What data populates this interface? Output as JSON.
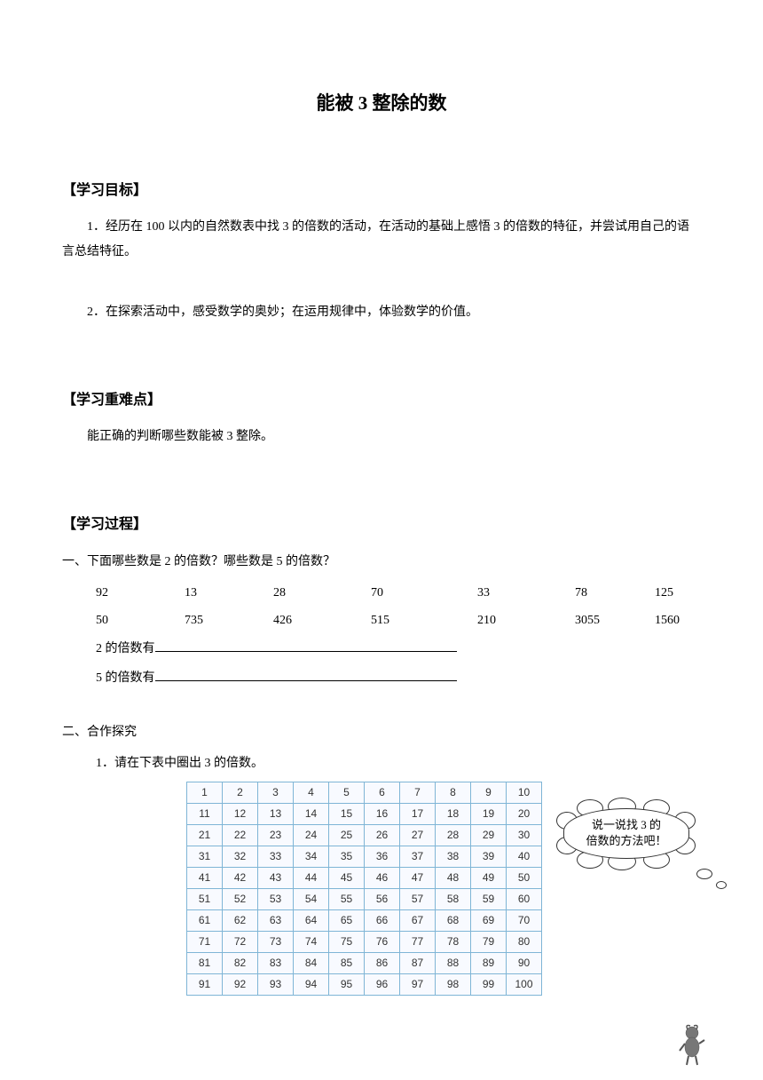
{
  "title": "能被 3 整除的数",
  "sections": {
    "objectives": {
      "heading": "【学习目标】",
      "items": [
        "1．经历在 100 以内的自然数表中找 3 的倍数的活动，在活动的基础上感悟 3 的倍数的特征，并尝试用自己的语言总结特征。",
        "2．在探索活动中，感受数学的奥妙；在运用规律中，体验数学的价值。"
      ]
    },
    "keypoints": {
      "heading": "【学习重难点】",
      "text": "能正确的判断哪些数能被 3 整除。"
    },
    "process": {
      "heading": "【学习过程】",
      "q1": {
        "prompt": "一、下面哪些数是 2 的倍数？哪些数是 5 的倍数？",
        "row1": [
          "92",
          "13",
          "28",
          "70",
          "33",
          "78",
          "125"
        ],
        "row2": [
          "50",
          "735",
          "426",
          "515",
          "210",
          "3055",
          "1560"
        ],
        "fill1": "2 的倍数有",
        "fill2": "5 的倍数有"
      },
      "q2": {
        "heading": "二、合作探究",
        "sub": "1．请在下表中圈出 3 的倍数。",
        "grid_rows": 10,
        "grid_cols": 10,
        "grid_cell_border_color": "#7fb5d6",
        "grid_bg_color": "#f8faff",
        "bubble_text": "说一说找 3 的\n倍数的方法吧！"
      }
    }
  }
}
